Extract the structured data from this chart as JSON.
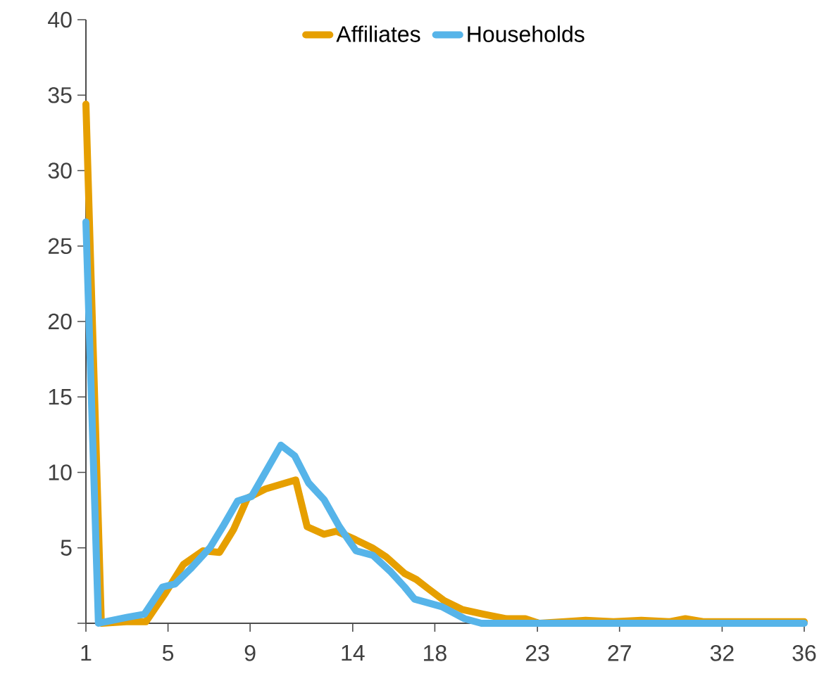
{
  "chart_data": {
    "type": "line",
    "legend": "top",
    "grid": false,
    "marker": "none",
    "line_style": "solid",
    "xlim": [
      1,
      36
    ],
    "ylim": [
      0,
      40
    ],
    "xticks": [
      1,
      5,
      9,
      14,
      18,
      23,
      27,
      32,
      36
    ],
    "yticks": [
      {
        "value": 0,
        "label": null
      },
      5,
      10,
      15,
      20,
      25,
      30,
      35,
      40
    ],
    "series": [
      {
        "name": "Affiliates",
        "color": "#e69f00",
        "x": [
          1,
          1.75,
          2.97,
          3.92,
          4.87,
          5.75,
          6.7,
          7.51,
          8.19,
          8.87,
          9.75,
          11.22,
          11.78,
          12.6,
          13.21,
          14.04,
          14.95,
          15.63,
          16.53,
          17.1,
          17.67,
          18.45,
          19.36,
          20.38,
          21.5,
          22.41,
          23.09,
          24.33,
          25.35,
          26.71,
          28.06,
          29.42,
          30.21,
          31.12,
          36
        ],
        "values": [
          34.4,
          0,
          0.1,
          0.1,
          2.0,
          3.9,
          4.8,
          4.7,
          6.2,
          8.3,
          8.9,
          9.5,
          6.4,
          5.9,
          6.1,
          5.6,
          5.0,
          4.4,
          3.3,
          2.9,
          2.3,
          1.5,
          0.9,
          0.6,
          0.3,
          0.3,
          0,
          0.1,
          0.2,
          0.1,
          0.2,
          0.1,
          0.3,
          0.1,
          0.1
        ]
      },
      {
        "name": "Households",
        "color": "#56b4e9",
        "x": [
          1,
          1.61,
          3.03,
          3.85,
          4.73,
          5.34,
          6.09,
          7.04,
          7.71,
          8.39,
          9.07,
          10.5,
          11.17,
          11.85,
          12.6,
          13.35,
          14.16,
          14.98,
          15.86,
          16.53,
          17.01,
          18.34,
          19.45,
          20.27,
          36
        ],
        "values": [
          26.6,
          0,
          0.4,
          0.6,
          2.4,
          2.6,
          3.6,
          5.0,
          6.5,
          8.1,
          8.4,
          11.8,
          11.1,
          9.3,
          8.2,
          6.4,
          4.8,
          4.5,
          3.4,
          2.4,
          1.6,
          1.1,
          0.3,
          0,
          0
        ]
      }
    ]
  }
}
